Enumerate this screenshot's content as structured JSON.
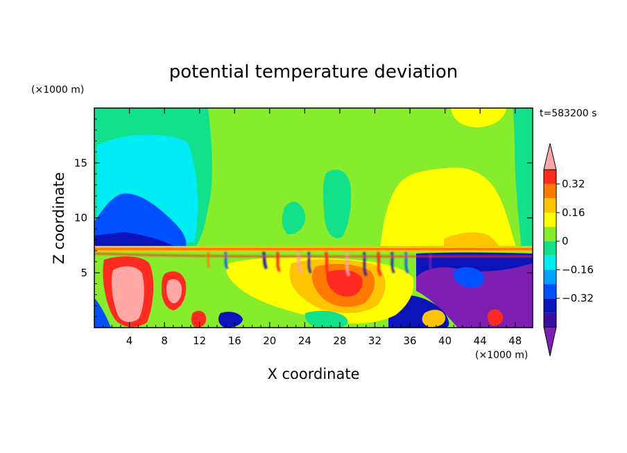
{
  "chart_data": {
    "type": "heatmap",
    "title": "potential temperature deviation",
    "xlabel": "X coordinate",
    "ylabel": "Z coordinate",
    "x_unit": "(×1000 m)",
    "y_unit": "(×1000 m)",
    "time_label": "t=583200 s",
    "xlim": [
      0,
      50
    ],
    "ylim": [
      0,
      20
    ],
    "x_ticks": [
      4,
      8,
      12,
      16,
      20,
      24,
      28,
      32,
      36,
      40,
      44,
      48
    ],
    "y_ticks": [
      5,
      10,
      15
    ],
    "colorbar": {
      "levels": [
        -0.48,
        -0.4,
        -0.32,
        -0.24,
        -0.16,
        -0.08,
        0,
        0.08,
        0.16,
        0.24,
        0.32,
        0.4
      ],
      "labeled_levels": [
        0.32,
        0.16,
        0,
        -0.16,
        -0.32
      ],
      "colors": [
        "#7d1fb2",
        "#3a0fa0",
        "#0a14b9",
        "#0050ff",
        "#00a0ff",
        "#00ecf4",
        "#13e08a",
        "#86ec2b",
        "#ffff00",
        "#ffc400",
        "#ff7a00",
        "#ff2a20",
        "#ffa6a6"
      ]
    },
    "grid": false,
    "legend_position": "right"
  }
}
